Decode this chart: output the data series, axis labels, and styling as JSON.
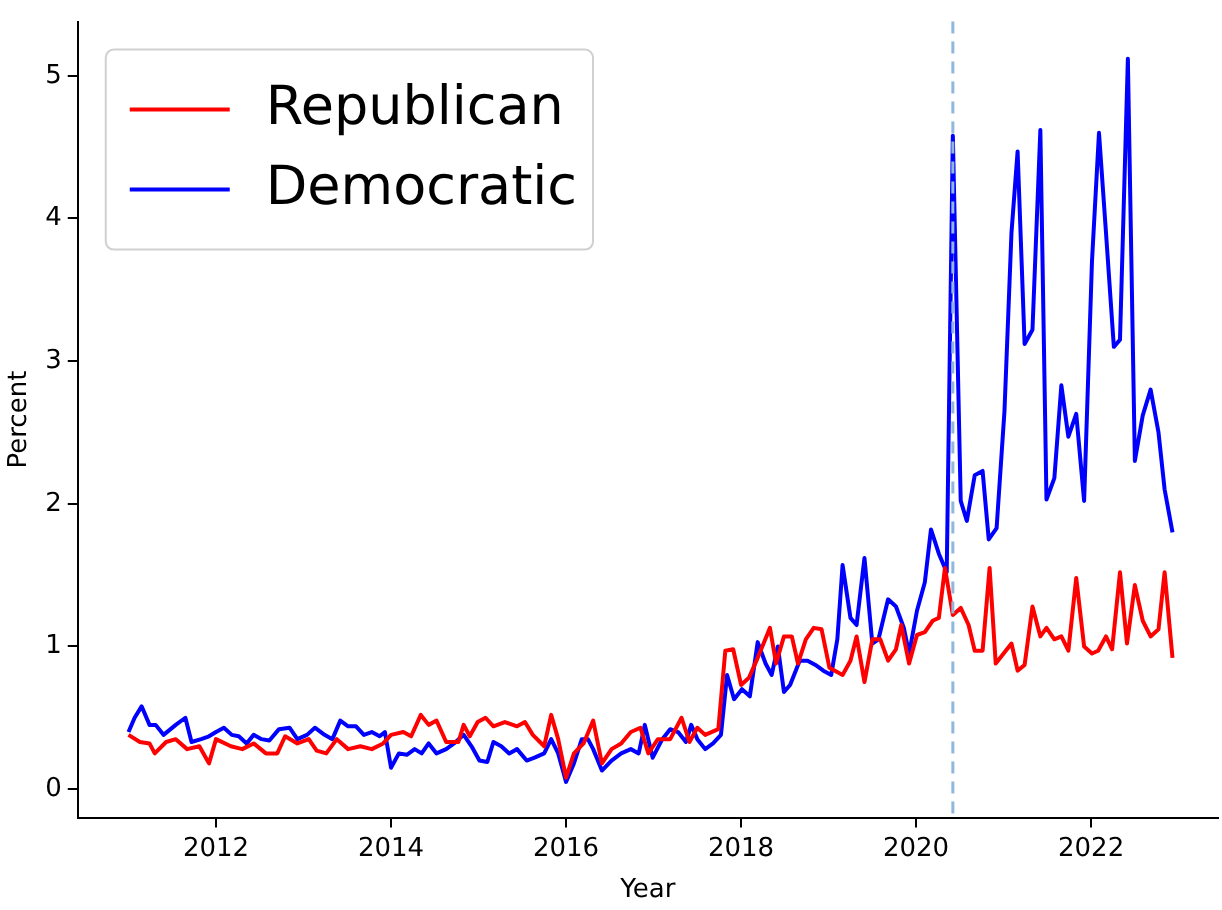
{
  "chart_data": {
    "type": "line",
    "xlabel": "Year",
    "ylabel": "Percent",
    "xlim": [
      2010.42,
      2023.45
    ],
    "ylim": [
      -0.2,
      5.38
    ],
    "xticks": [
      2012,
      2014,
      2016,
      2018,
      2020,
      2022
    ],
    "yticks": [
      0,
      1,
      2,
      3,
      4,
      5
    ],
    "legend": "top left",
    "marker": "none",
    "ref_lines": [
      {
        "axis": "x",
        "value": 2020.42,
        "color": "#8fb8dc",
        "line_style": "dashed"
      }
    ],
    "series": [
      {
        "name": "Republican",
        "color": "#ff0000",
        "x": [
          2011.0,
          2011.13,
          2011.24,
          2011.3,
          2011.43,
          2011.54,
          2011.67,
          2011.81,
          2011.92,
          2012.0,
          2012.17,
          2012.3,
          2012.43,
          2012.57,
          2012.7,
          2012.79,
          2012.93,
          2013.06,
          2013.15,
          2013.26,
          2013.38,
          2013.51,
          2013.65,
          2013.78,
          2013.91,
          2014.0,
          2014.14,
          2014.23,
          2014.34,
          2014.43,
          2014.52,
          2014.63,
          2014.77,
          2014.83,
          2014.9,
          2014.99,
          2015.08,
          2015.17,
          2015.3,
          2015.44,
          2015.53,
          2015.62,
          2015.75,
          2015.83,
          2015.91,
          2016.0,
          2016.09,
          2016.2,
          2016.31,
          2016.41,
          2016.52,
          2016.63,
          2016.74,
          2016.85,
          2016.94,
          2017.05,
          2017.19,
          2017.32,
          2017.41,
          2017.5,
          2017.59,
          2017.74,
          2017.82,
          2017.91,
          2018.0,
          2018.09,
          2018.19,
          2018.33,
          2018.4,
          2018.49,
          2018.58,
          2018.65,
          2018.74,
          2018.83,
          2018.92,
          2019.01,
          2019.16,
          2019.25,
          2019.32,
          2019.41,
          2019.5,
          2019.59,
          2019.68,
          2019.77,
          2019.83,
          2019.92,
          2020.01,
          2020.1,
          2020.19,
          2020.26,
          2020.33,
          2020.42,
          2020.51,
          2020.6,
          2020.67,
          2020.76,
          2020.84,
          2020.91,
          2021.0,
          2021.09,
          2021.16,
          2021.24,
          2021.33,
          2021.42,
          2021.49,
          2021.58,
          2021.66,
          2021.74,
          2021.83,
          2021.92,
          2022.01,
          2022.08,
          2022.17,
          2022.24,
          2022.33,
          2022.41,
          2022.5,
          2022.59,
          2022.68,
          2022.77,
          2022.84,
          2022.93
        ],
        "values": [
          0.38,
          0.33,
          0.32,
          0.25,
          0.33,
          0.35,
          0.28,
          0.3,
          0.18,
          0.35,
          0.3,
          0.28,
          0.32,
          0.25,
          0.25,
          0.37,
          0.32,
          0.35,
          0.27,
          0.25,
          0.35,
          0.28,
          0.3,
          0.28,
          0.32,
          0.38,
          0.4,
          0.37,
          0.52,
          0.45,
          0.48,
          0.33,
          0.33,
          0.45,
          0.37,
          0.47,
          0.5,
          0.44,
          0.47,
          0.44,
          0.47,
          0.38,
          0.3,
          0.52,
          0.35,
          0.08,
          0.25,
          0.32,
          0.48,
          0.18,
          0.28,
          0.32,
          0.4,
          0.43,
          0.25,
          0.35,
          0.35,
          0.5,
          0.33,
          0.43,
          0.38,
          0.42,
          0.97,
          0.98,
          0.73,
          0.78,
          0.92,
          1.13,
          0.88,
          1.07,
          1.07,
          0.88,
          1.05,
          1.13,
          1.12,
          0.85,
          0.8,
          0.9,
          1.07,
          0.75,
          1.05,
          1.05,
          0.9,
          0.98,
          1.15,
          0.88,
          1.08,
          1.1,
          1.18,
          1.2,
          1.55,
          1.22,
          1.27,
          1.15,
          0.97,
          0.97,
          1.55,
          0.88,
          0.95,
          1.02,
          0.83,
          0.87,
          1.28,
          1.07,
          1.13,
          1.05,
          1.07,
          0.97,
          1.48,
          1.0,
          0.95,
          0.97,
          1.07,
          0.98,
          1.52,
          1.02,
          1.43,
          1.18,
          1.07,
          1.12,
          1.52,
          0.92
        ]
      },
      {
        "name": "Democratic",
        "color": "#0000ff",
        "x": [
          2011.0,
          2011.07,
          2011.15,
          2011.24,
          2011.31,
          2011.4,
          2011.54,
          2011.65,
          2011.72,
          2011.83,
          2011.92,
          2012.0,
          2012.09,
          2012.18,
          2012.26,
          2012.35,
          2012.43,
          2012.52,
          2012.61,
          2012.72,
          2012.84,
          2012.93,
          2013.04,
          2013.13,
          2013.24,
          2013.33,
          2013.42,
          2013.51,
          2013.6,
          2013.69,
          2013.78,
          2013.87,
          2013.93,
          2014.0,
          2014.09,
          2014.18,
          2014.27,
          2014.35,
          2014.43,
          2014.52,
          2014.63,
          2014.72,
          2014.83,
          2014.92,
          2015.01,
          2015.1,
          2015.17,
          2015.26,
          2015.35,
          2015.44,
          2015.55,
          2015.64,
          2015.75,
          2015.83,
          2015.91,
          2016.0,
          2016.09,
          2016.18,
          2016.25,
          2016.31,
          2016.41,
          2016.52,
          2016.63,
          2016.74,
          2016.83,
          2016.9,
          2016.99,
          2017.1,
          2017.19,
          2017.28,
          2017.37,
          2017.43,
          2017.5,
          2017.59,
          2017.68,
          2017.77,
          2017.84,
          2017.92,
          2018.01,
          2018.1,
          2018.19,
          2018.28,
          2018.35,
          2018.42,
          2018.49,
          2018.56,
          2018.67,
          2018.76,
          2018.85,
          2018.94,
          2019.03,
          2019.1,
          2019.16,
          2019.25,
          2019.32,
          2019.41,
          2019.5,
          2019.57,
          2019.68,
          2019.77,
          2019.86,
          2019.92,
          2020.01,
          2020.1,
          2020.17,
          2020.26,
          2020.35,
          2020.42,
          2020.51,
          2020.58,
          2020.67,
          2020.76,
          2020.83,
          2020.92,
          2021.01,
          2021.09,
          2021.16,
          2021.24,
          2021.33,
          2021.42,
          2021.49,
          2021.58,
          2021.66,
          2021.74,
          2021.83,
          2021.92,
          2022.01,
          2022.09,
          2022.17,
          2022.26,
          2022.33,
          2022.42,
          2022.5,
          2022.59,
          2022.68,
          2022.77,
          2022.84,
          2022.93
        ],
        "values": [
          0.4,
          0.5,
          0.58,
          0.45,
          0.45,
          0.38,
          0.45,
          0.5,
          0.33,
          0.35,
          0.37,
          0.4,
          0.43,
          0.38,
          0.37,
          0.32,
          0.38,
          0.35,
          0.34,
          0.42,
          0.43,
          0.35,
          0.38,
          0.43,
          0.38,
          0.35,
          0.48,
          0.44,
          0.44,
          0.38,
          0.4,
          0.37,
          0.4,
          0.15,
          0.25,
          0.24,
          0.28,
          0.25,
          0.32,
          0.25,
          0.28,
          0.32,
          0.38,
          0.3,
          0.2,
          0.19,
          0.33,
          0.3,
          0.25,
          0.28,
          0.2,
          0.22,
          0.25,
          0.35,
          0.25,
          0.05,
          0.18,
          0.35,
          0.35,
          0.28,
          0.13,
          0.2,
          0.25,
          0.28,
          0.25,
          0.45,
          0.22,
          0.35,
          0.42,
          0.4,
          0.33,
          0.45,
          0.35,
          0.28,
          0.32,
          0.38,
          0.8,
          0.63,
          0.7,
          0.65,
          1.03,
          0.88,
          0.8,
          1.0,
          0.68,
          0.73,
          0.9,
          0.9,
          0.87,
          0.83,
          0.8,
          1.05,
          1.57,
          1.2,
          1.15,
          1.62,
          1.02,
          1.05,
          1.33,
          1.28,
          1.13,
          0.95,
          1.25,
          1.45,
          1.82,
          1.65,
          1.52,
          4.58,
          2.02,
          1.88,
          2.2,
          2.23,
          1.75,
          1.83,
          2.65,
          3.9,
          4.47,
          3.12,
          3.22,
          4.62,
          2.03,
          2.18,
          2.83,
          2.47,
          2.63,
          2.02,
          3.7,
          4.6,
          3.9,
          3.1,
          3.15,
          5.12,
          2.3,
          2.62,
          2.8,
          2.5,
          2.1,
          1.8
        ]
      }
    ]
  }
}
